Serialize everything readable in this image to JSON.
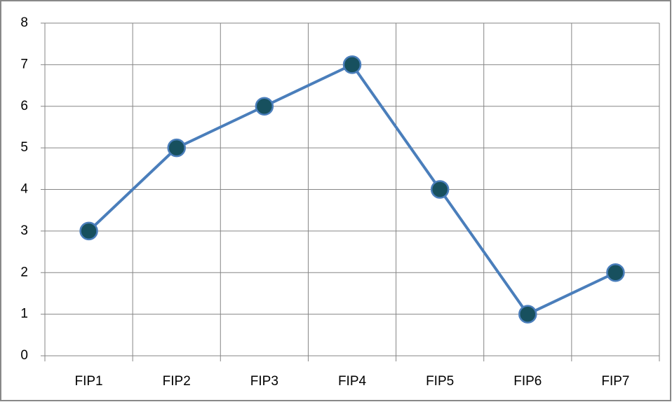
{
  "chart_data": {
    "type": "line",
    "categories": [
      "FIP1",
      "FIP2",
      "FIP3",
      "FIP4",
      "FIP5",
      "FIP6",
      "FIP7"
    ],
    "values": [
      3,
      5,
      6,
      7,
      4,
      1,
      2
    ],
    "color": "#4a7ebb",
    "marker_color": "#17505e",
    "ylim": [
      0,
      8
    ],
    "yticks": [
      0,
      1,
      2,
      3,
      4,
      5,
      6,
      7,
      8
    ],
    "grid": true
  }
}
